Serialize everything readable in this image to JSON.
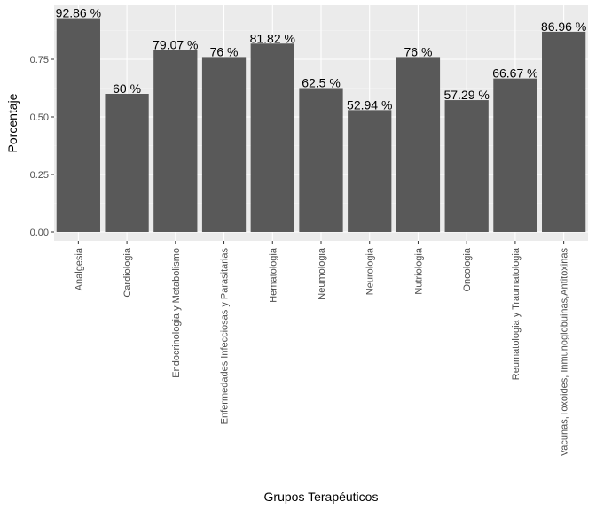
{
  "chart_data": {
    "type": "bar",
    "title": "",
    "xlabel": "Grupos Terapéuticos",
    "ylabel": "Porcentaje",
    "ylim": [
      0,
      0.95
    ],
    "yticks": [
      0.0,
      0.25,
      0.5,
      0.75
    ],
    "ytick_labels": [
      "0.00",
      "0.25",
      "0.50",
      "0.75"
    ],
    "categories": [
      "Analgesia",
      "Cardiologia",
      "Endocrinologia y Metabolismo",
      "Enfermedades Infecciosas y Parasitarias",
      "Hematologia",
      "Neumologia",
      "Neurologia",
      "Nutriologia",
      "Oncologia",
      "Reumatologia y Traumatologia",
      "Vacunas,Toxoides, Inmunoglobuinas,Antitoxinas"
    ],
    "values": [
      0.9286,
      0.6,
      0.7907,
      0.76,
      0.8182,
      0.625,
      0.5294,
      0.76,
      0.5729,
      0.6667,
      0.8696
    ],
    "data_labels": [
      "92.86 %",
      "60 %",
      "79.07 %",
      "76 %",
      "81.82 %",
      "62.5 %",
      "52.94 %",
      "76 %",
      "57.29 %",
      "66.67 %",
      "86.96 %"
    ],
    "grid": true,
    "colors": {
      "bar": "#595959",
      "panel": "#ebebeb",
      "grid_major": "#ffffff",
      "grid_minor": "#f5f5f5"
    }
  }
}
